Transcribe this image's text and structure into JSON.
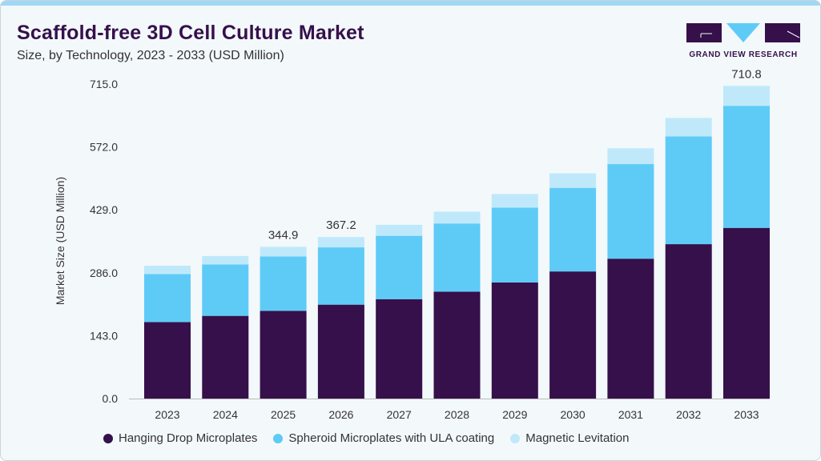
{
  "header": {
    "title": "Scaffold-free 3D Cell Culture Market",
    "subtitle": "Size, by Technology, 2023 - 2033 (USD Million)",
    "logo_text": "GRAND VIEW RESEARCH"
  },
  "chart_data": {
    "type": "bar",
    "stacked": true,
    "title": "Scaffold-free 3D Cell Culture Market",
    "subtitle": "Size, by Technology, 2023 - 2033 (USD Million)",
    "xlabel": "",
    "ylabel": "Market Size (USD Million)",
    "ylim": [
      0,
      715
    ],
    "yticks": [
      "0.0",
      "143.0",
      "286.0",
      "429.0",
      "572.0",
      "715.0"
    ],
    "grid": false,
    "legend_position": "bottom",
    "categories": [
      "2023",
      "2024",
      "2025",
      "2026",
      "2027",
      "2028",
      "2029",
      "2030",
      "2031",
      "2032",
      "2033"
    ],
    "series": [
      {
        "name": "Hanging Drop Microplates",
        "color": "#35104a",
        "values": [
          174,
          188,
          199.5,
          213.5,
          226,
          243,
          264,
          289,
          318,
          351,
          388
        ]
      },
      {
        "name": "Spheroid Microplates with ULA coating",
        "color": "#5ecbf7",
        "values": [
          109,
          117,
          123.5,
          130.2,
          144,
          155,
          170,
          190,
          215,
          245,
          277.5
        ]
      },
      {
        "name": "Magnetic Levitation",
        "color": "#bfe9fa",
        "values": [
          19,
          19,
          21.9,
          23.5,
          25,
          27,
          31,
          33,
          36,
          42,
          45.3
        ]
      }
    ],
    "data_labels": [
      {
        "category": "2025",
        "text": "344.9"
      },
      {
        "category": "2026",
        "text": "367.2"
      },
      {
        "category": "2033",
        "text": "710.8"
      }
    ]
  }
}
